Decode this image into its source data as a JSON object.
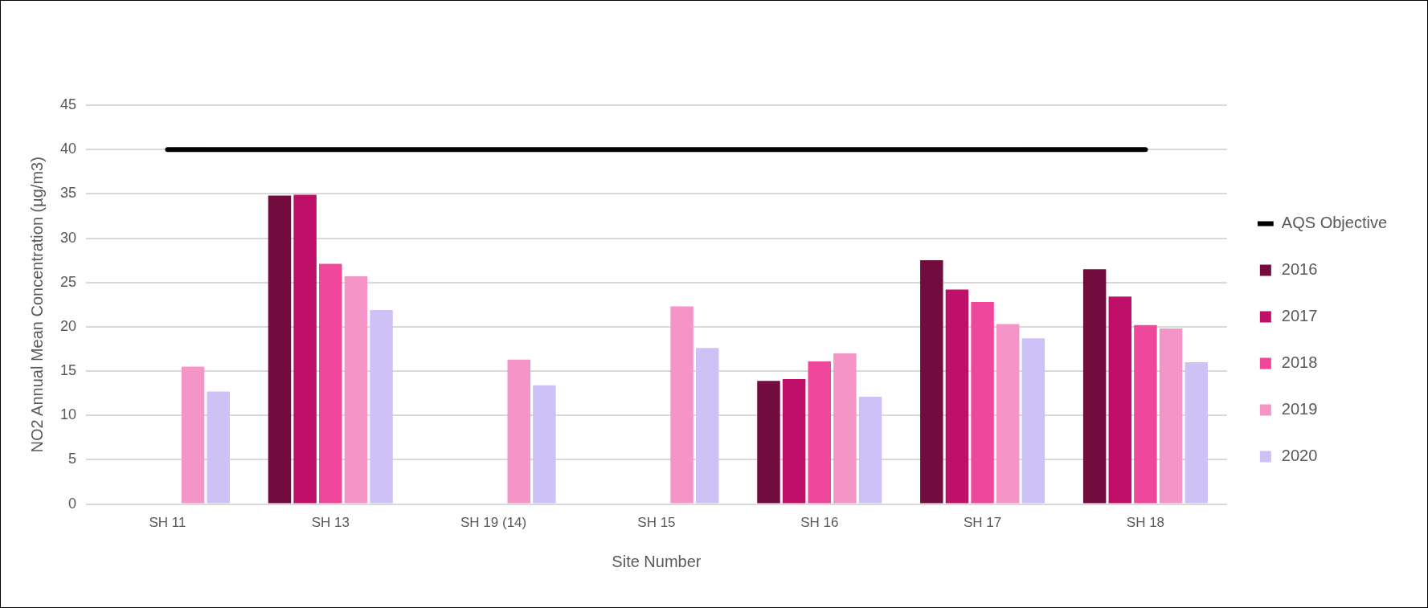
{
  "chart_data": {
    "type": "bar",
    "xlabel": "Site Number",
    "ylabel": "NO2 Annual Mean Concentration (µg/m3)",
    "categories": [
      "SH 11",
      "SH 13",
      "SH 19 (14)",
      "SH 15",
      "SH 16",
      "SH 17",
      "SH 18"
    ],
    "series": [
      {
        "name": "2016",
        "color": "#720b3e",
        "values": [
          null,
          34.8,
          null,
          null,
          13.9,
          27.5,
          26.5
        ]
      },
      {
        "name": "2017",
        "color": "#be1068",
        "values": [
          null,
          34.9,
          null,
          null,
          14.1,
          24.2,
          23.4
        ]
      },
      {
        "name": "2018",
        "color": "#ee479c",
        "values": [
          null,
          27.1,
          null,
          null,
          16.1,
          22.8,
          20.2
        ]
      },
      {
        "name": "2019",
        "color": "#f595c7",
        "values": [
          15.5,
          25.7,
          16.3,
          22.3,
          17.0,
          20.3,
          19.8
        ]
      },
      {
        "name": "2020",
        "color": "#cdc1f5",
        "values": [
          12.7,
          21.9,
          13.4,
          17.6,
          12.1,
          18.7,
          16.0
        ]
      },
      {
        "name": "AQS Objective",
        "type": "line",
        "color": "#000000",
        "values": [
          40,
          40,
          40,
          40,
          40,
          40,
          40
        ]
      }
    ],
    "ylim": [
      0,
      45
    ],
    "yticks": [
      0,
      5,
      10,
      15,
      20,
      25,
      30,
      35,
      40,
      45
    ],
    "grid": "y",
    "legend": "right",
    "marker": "none",
    "line_style": "solid"
  }
}
